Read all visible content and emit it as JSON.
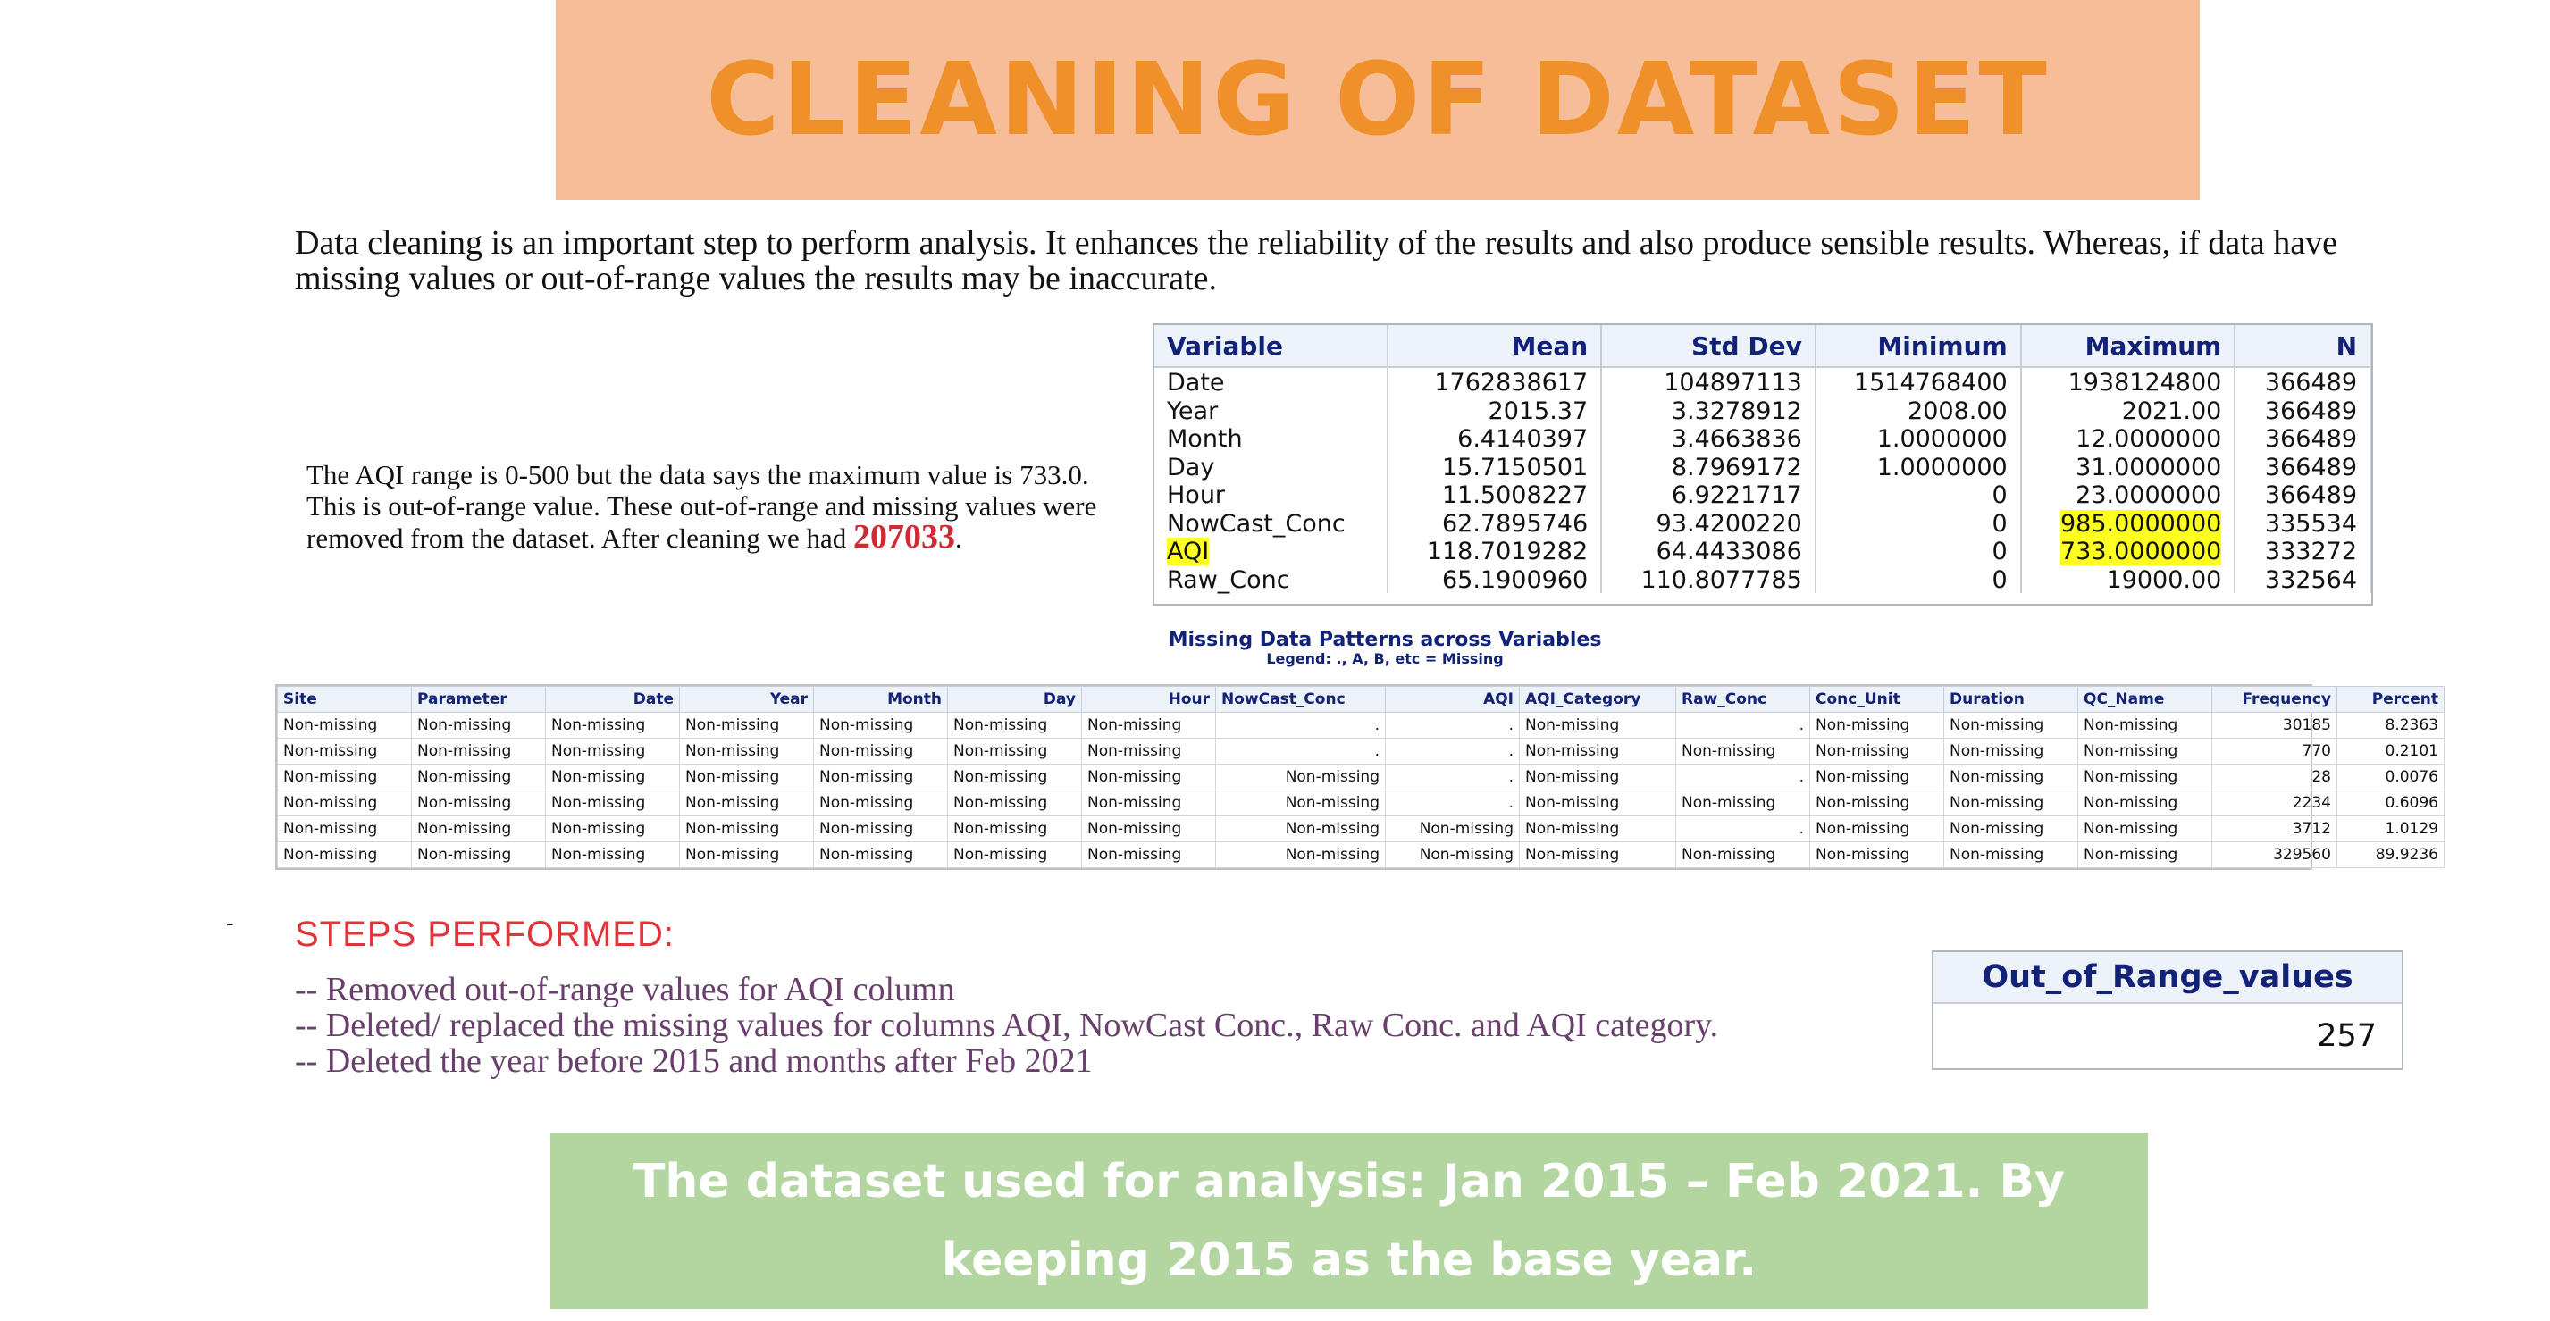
{
  "title": "CLEANING OF DATASET",
  "intro": "Data cleaning is an important step to perform analysis. It enhances the reliability of the results and also produce sensible results. Whereas, if data have missing values or out-of-range values the results may be inaccurate.",
  "aqi_note": {
    "text": "The AQI range is 0-500 but the data says the maximum value is 733.0. This is out-of-range value. These out-of-range and missing values were removed from the dataset. After cleaning we had",
    "count": "207033",
    "suffix": "."
  },
  "stats_table": {
    "headers": [
      "Variable",
      "Mean",
      "Std Dev",
      "Minimum",
      "Maximum",
      "N"
    ],
    "rows": [
      [
        "Date",
        "1762838617",
        "104897113",
        "1514768400",
        "1938124800",
        "366489"
      ],
      [
        "Year",
        "2015.37",
        "3.3278912",
        "2008.00",
        "2021.00",
        "366489"
      ],
      [
        "Month",
        "6.4140397",
        "3.4663836",
        "1.0000000",
        "12.0000000",
        "366489"
      ],
      [
        "Day",
        "15.7150501",
        "8.7969172",
        "1.0000000",
        "31.0000000",
        "366489"
      ],
      [
        "Hour",
        "11.5008227",
        "6.9221717",
        "0",
        "23.0000000",
        "366489"
      ],
      [
        "NowCast_Conc",
        "62.7895746",
        "93.4200220",
        "0",
        "985.0000000",
        "335534"
      ],
      [
        "AQI",
        "118.7019282",
        "64.4433086",
        "0",
        "733.0000000",
        "333272"
      ],
      [
        "Raw_Conc",
        "65.1900960",
        "110.8077785",
        "0",
        "19000.00",
        "332564"
      ]
    ],
    "highlight_color": "#ffff1f"
  },
  "missing_patterns": {
    "title": "Missing Data Patterns across Variables",
    "legend": "Legend: ., A, B, etc = Missing",
    "headers": [
      "Site",
      "Parameter",
      "Date",
      "Year",
      "Month",
      "Day",
      "Hour",
      "NowCast_Conc",
      "AQI",
      "AQI_Category",
      "Raw_Conc",
      "Conc_Unit",
      "Duration",
      "QC_Name",
      "Frequency",
      "Percent"
    ],
    "rows": [
      [
        "Non-missing",
        "Non-missing",
        "Non-missing",
        "Non-missing",
        "Non-missing",
        "Non-missing",
        "Non-missing",
        ".",
        ".",
        "Non-missing",
        ".",
        "Non-missing",
        "Non-missing",
        "Non-missing",
        "30185",
        "8.2363"
      ],
      [
        "Non-missing",
        "Non-missing",
        "Non-missing",
        "Non-missing",
        "Non-missing",
        "Non-missing",
        "Non-missing",
        ".",
        ".",
        "Non-missing",
        "Non-missing",
        "Non-missing",
        "Non-missing",
        "Non-missing",
        "770",
        "0.2101"
      ],
      [
        "Non-missing",
        "Non-missing",
        "Non-missing",
        "Non-missing",
        "Non-missing",
        "Non-missing",
        "Non-missing",
        "Non-missing",
        ".",
        "Non-missing",
        ".",
        "Non-missing",
        "Non-missing",
        "Non-missing",
        "28",
        "0.0076"
      ],
      [
        "Non-missing",
        "Non-missing",
        "Non-missing",
        "Non-missing",
        "Non-missing",
        "Non-missing",
        "Non-missing",
        "Non-missing",
        ".",
        "Non-missing",
        "Non-missing",
        "Non-missing",
        "Non-missing",
        "Non-missing",
        "2234",
        "0.6096"
      ],
      [
        "Non-missing",
        "Non-missing",
        "Non-missing",
        "Non-missing",
        "Non-missing",
        "Non-missing",
        "Non-missing",
        "Non-missing",
        "Non-missing",
        "Non-missing",
        ".",
        "Non-missing",
        "Non-missing",
        "Non-missing",
        "3712",
        "1.0129"
      ],
      [
        "Non-missing",
        "Non-missing",
        "Non-missing",
        "Non-missing",
        "Non-missing",
        "Non-missing",
        "Non-missing",
        "Non-missing",
        "Non-missing",
        "Non-missing",
        "Non-missing",
        "Non-missing",
        "Non-missing",
        "Non-missing",
        "329560",
        "89.9236"
      ]
    ]
  },
  "steps": {
    "heading": "STEPS PERFORMED:",
    "items": [
      "-- Removed out-of-range values for AQI column",
      "-- Deleted/ replaced the missing values for columns AQI, NowCast Conc., Raw Conc. and AQI category.",
      "-- Deleted the year before 2015 and months after Feb 2021"
    ]
  },
  "dash_mark": "-",
  "out_of_range": {
    "header": "Out_of_Range_values",
    "value": "257"
  },
  "bottom_banner": "The dataset used for analysis: Jan 2015 – Feb 2021. By keeping 2015 as the base year.",
  "colors": {
    "title_banner_bg": "#f6be98",
    "title_text": "#f0902a",
    "bottom_banner_bg": "#b3d5a0",
    "steps_heading": "#e0343b",
    "steps_text": "#6a3f6e",
    "count_highlight": "#d02a35"
  }
}
